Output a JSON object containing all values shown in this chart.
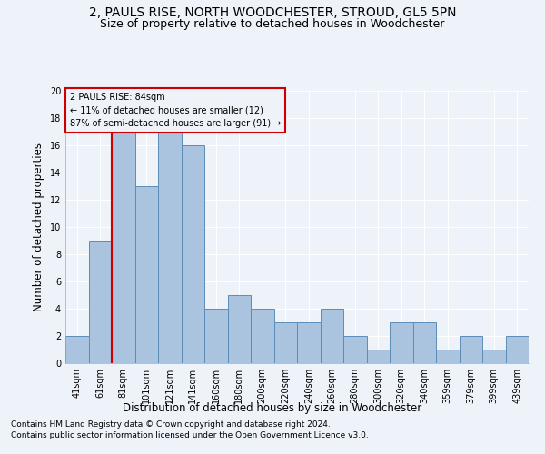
{
  "title": "2, PAULS RISE, NORTH WOODCHESTER, STROUD, GL5 5PN",
  "subtitle": "Size of property relative to detached houses in Woodchester",
  "xlabel": "Distribution of detached houses by size in Woodchester",
  "ylabel": "Number of detached properties",
  "footnote1": "Contains HM Land Registry data © Crown copyright and database right 2024.",
  "footnote2": "Contains public sector information licensed under the Open Government Licence v3.0.",
  "annotation_line1": "2 PAULS RISE: 84sqm",
  "annotation_line2": "← 11% of detached houses are smaller (12)",
  "annotation_line3": "87% of semi-detached houses are larger (91) →",
  "bar_values": [
    2,
    9,
    17,
    13,
    17,
    16,
    4,
    5,
    4,
    3,
    3,
    4,
    2,
    1,
    3,
    3,
    1,
    2,
    1,
    2
  ],
  "categories": [
    "41sqm",
    "61sqm",
    "81sqm",
    "101sqm",
    "121sqm",
    "141sqm",
    "160sqm",
    "180sqm",
    "200sqm",
    "220sqm",
    "240sqm",
    "260sqm",
    "280sqm",
    "300sqm",
    "320sqm",
    "340sqm",
    "359sqm",
    "379sqm",
    "399sqm",
    "439sqm"
  ],
  "bar_color": "#aac4e0",
  "bar_edge_color": "#5b8db8",
  "red_line_x": 1.5,
  "ylim": [
    0,
    20
  ],
  "yticks": [
    0,
    2,
    4,
    6,
    8,
    10,
    12,
    14,
    16,
    18,
    20
  ],
  "annotation_box_color": "#cc0000",
  "bg_color": "#eef2f9",
  "grid_color": "#d0d8e8",
  "title_fontsize": 10,
  "subtitle_fontsize": 9,
  "axis_label_fontsize": 8.5,
  "tick_fontsize": 7,
  "footnote_fontsize": 6.5
}
